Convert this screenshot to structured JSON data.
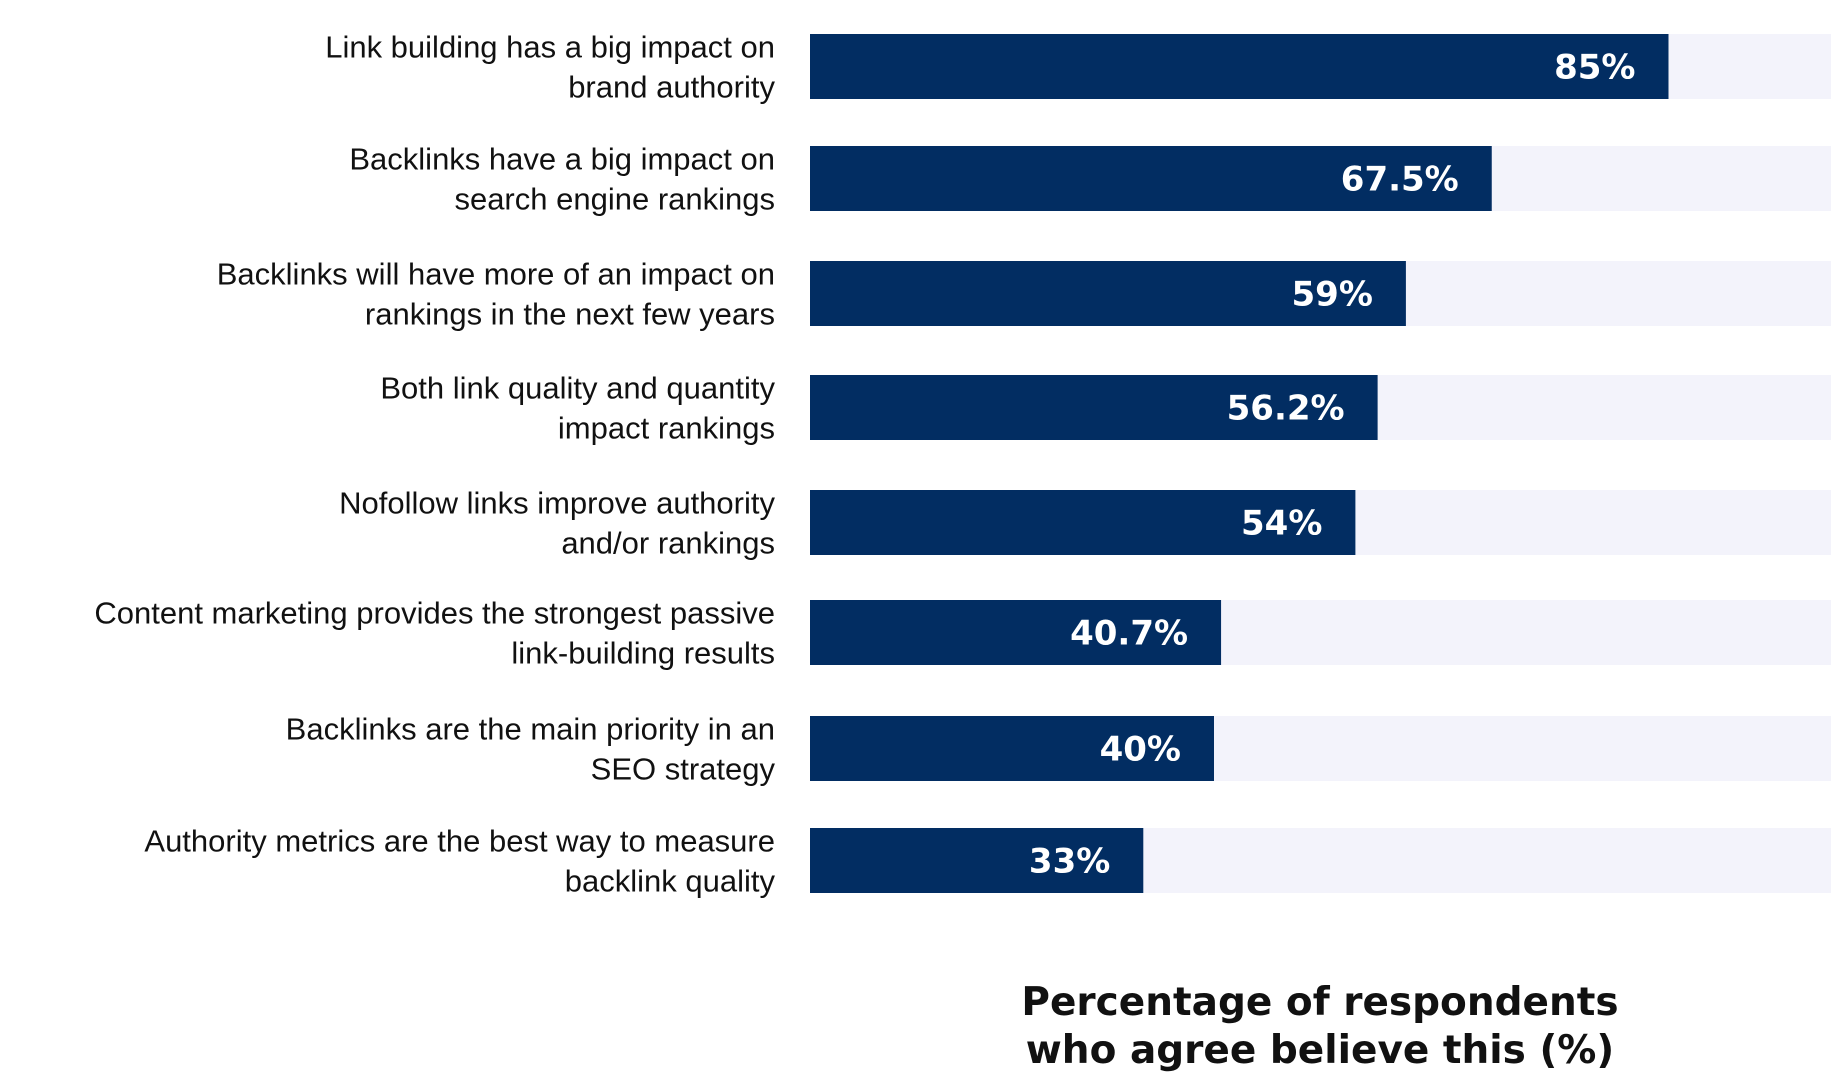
{
  "chart_data": {
    "type": "bar",
    "orientation": "horizontal",
    "categories": [
      [
        "Link building has a big impact on",
        "brand authority"
      ],
      [
        "Backlinks have a big impact on",
        "search engine rankings"
      ],
      [
        "Backlinks will have more of an impact on",
        "rankings in the next few years"
      ],
      [
        "Both link quality and quantity",
        "impact rankings"
      ],
      [
        "Nofollow links improve authority",
        "and/or rankings"
      ],
      [
        "Content marketing provides the strongest passive",
        "link-building results"
      ],
      [
        "Backlinks are the main priority in an",
        "SEO strategy"
      ],
      [
        "Authority metrics are the best way to measure",
        "backlink quality"
      ]
    ],
    "values": [
      85,
      67.5,
      59,
      56.2,
      54,
      40.7,
      40,
      33
    ],
    "value_labels": [
      "85%",
      "67.5%",
      "59%",
      "56.2%",
      "54%",
      "40.7%",
      "40%",
      "33%"
    ],
    "xlabel": [
      "Percentage of respondents",
      "who agree believe this (%)"
    ],
    "xlim": [
      0,
      100
    ],
    "grid": false,
    "colors": {
      "bar": "#022d62",
      "track": "#f3f3fb",
      "value_text": "#ffffff",
      "label_text": "#111111"
    }
  }
}
